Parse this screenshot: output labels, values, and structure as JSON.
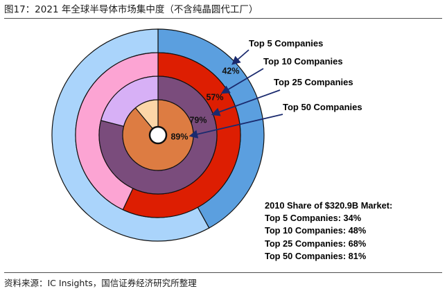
{
  "header": {
    "title": "图17：2021 年全球半导体市场集中度（不含纯晶圆代工厂）"
  },
  "footer": {
    "source": "资料来源：IC Insights，国信证券经济研究所整理"
  },
  "chart_data": {
    "type": "pie",
    "variant": "nested-donut",
    "title": "图17：2021 年全球半导体市场集中度（不含纯晶圆代工厂）",
    "rings": [
      {
        "name": "Top 5 Companies",
        "value": 42,
        "label": "42%",
        "color": "#5b9fdf",
        "rest_color": "#aad4fb"
      },
      {
        "name": "Top 10 Companies",
        "value": 57,
        "label": "57%",
        "color": "#dd1e02",
        "rest_color": "#fca4d3"
      },
      {
        "name": "Top 25 Companies",
        "value": 79,
        "label": "79%",
        "color": "#7a4c7c",
        "rest_color": "#d7b0f6"
      },
      {
        "name": "Top 50 Companies",
        "value": 89,
        "label": "89%",
        "color": "#dd7c42",
        "rest_color": "#fcd6a8"
      }
    ],
    "ring_order": "outer-to-inner",
    "start_angle": "12 o'clock, clockwise",
    "legend_placement": "callouts top-right",
    "annotation": {
      "heading": "2010 Share of $320.9B Market:",
      "lines": [
        "Top 5 Companies: 34%",
        "Top 10 Companies: 48%",
        "Top 25 Companies: 68%",
        "Top 50 Companies: 81%"
      ],
      "values_2010": [
        34,
        48,
        68,
        81
      ]
    },
    "colors": {
      "leader": "#1a2a6e",
      "edge": "#111111"
    }
  }
}
